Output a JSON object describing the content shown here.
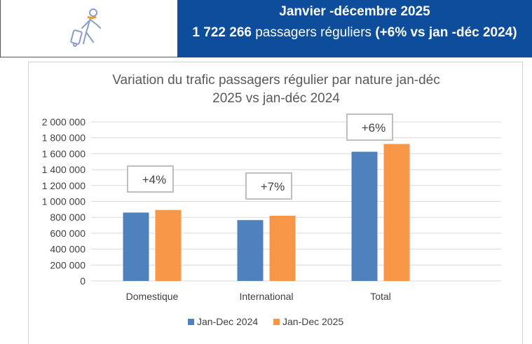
{
  "header": {
    "title": "Janvier -décembre  2025",
    "total": "1 722 266",
    "subtitle_mid": " passagers réguliers ",
    "subtitle_end": "(+6% vs jan -déc 2024)",
    "icon": "traveler-with-luggage-icon"
  },
  "chart_data": {
    "type": "bar",
    "title_line1": "Variation du trafic passagers régulier par nature jan-déc",
    "title_line2": "2025 vs jan-déc 2024",
    "categories": [
      "Domestique",
      "International",
      "Total"
    ],
    "series": [
      {
        "name": "Jan-Dec 2024",
        "color": "#4f81bd",
        "values": [
          860000,
          765000,
          1625000
        ]
      },
      {
        "name": "Jan-Dec 2025",
        "color": "#f79646",
        "values": [
          893000,
          820000,
          1722266
        ]
      }
    ],
    "annotations": [
      "+4%",
      "+7%",
      "+6%"
    ],
    "ylim": [
      0,
      2000000
    ],
    "yticks": [
      "0",
      "200 000",
      "400 000",
      "600 000",
      "800 000",
      "1 000 000",
      "1 200 000",
      "1 400 000",
      "1 600 000",
      "1 800 000",
      "2 000 000"
    ],
    "grid": true,
    "legend": "bottom"
  }
}
